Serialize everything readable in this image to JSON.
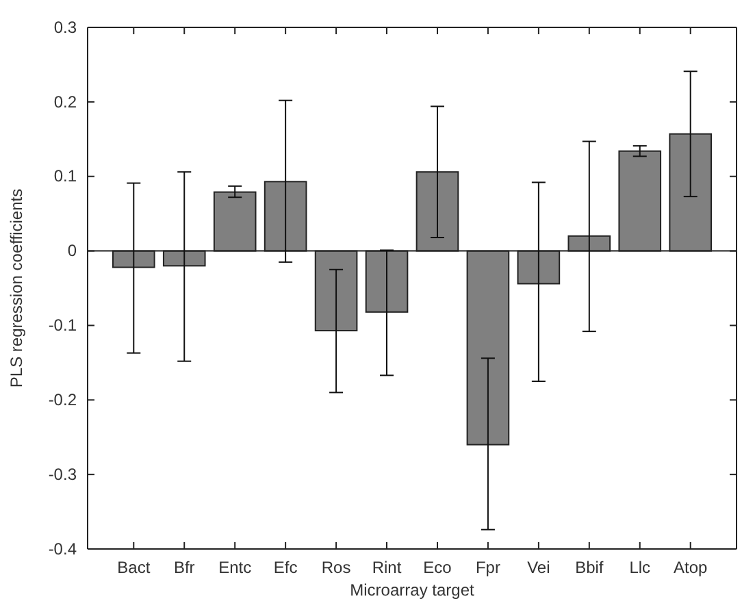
{
  "chart_data": {
    "type": "bar",
    "xlabel": "Microarray target",
    "ylabel": "PLS regression coefficients",
    "categories": [
      "Bact",
      "Bfr",
      "Entc",
      "Efc",
      "Ros",
      "Rint",
      "Eco",
      "Fpr",
      "Vei",
      "Bbif",
      "Llc",
      "Atop"
    ],
    "values": [
      -0.022,
      -0.02,
      0.079,
      0.093,
      -0.107,
      -0.082,
      0.106,
      -0.26,
      -0.044,
      0.02,
      0.134,
      0.157
    ],
    "errors": [
      [
        -0.137,
        0.091
      ],
      [
        -0.148,
        0.106
      ],
      [
        0.072,
        0.087
      ],
      [
        -0.015,
        0.202
      ],
      [
        -0.19,
        -0.025
      ],
      [
        -0.167,
        0.001
      ],
      [
        0.018,
        0.194
      ],
      [
        -0.374,
        -0.144
      ],
      [
        -0.175,
        0.092
      ],
      [
        -0.108,
        0.147
      ],
      [
        0.127,
        0.141
      ],
      [
        0.073,
        0.241
      ]
    ],
    "color": "#808080",
    "ylim": [
      -0.4,
      0.3
    ],
    "yticks": [
      -0.4,
      -0.3,
      -0.2,
      -0.1,
      0,
      0.1,
      0.2,
      0.3
    ],
    "ref_lines": [
      {
        "axis": "y",
        "value": 0,
        "color": "#222222"
      }
    ]
  }
}
